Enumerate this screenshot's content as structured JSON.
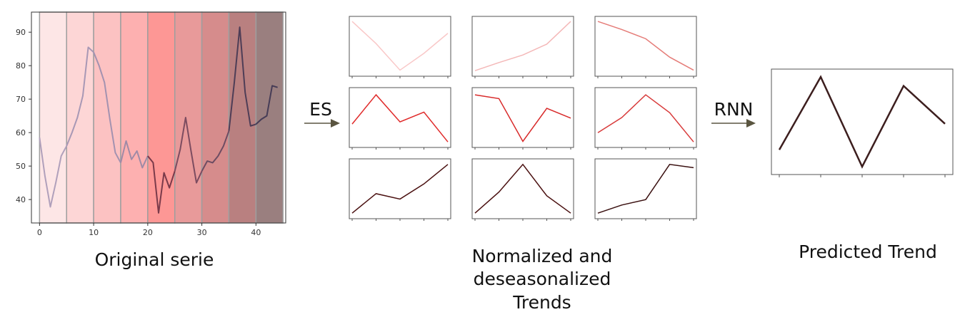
{
  "arrows": {
    "es_label": "ES",
    "rnn_label": "RNN"
  },
  "captions": {
    "original": "Original serie",
    "normalized_line1": "Normalized and",
    "normalized_line2": "deseasonalized",
    "normalized_line3": "Trends",
    "predicted": "Predicted Trend"
  },
  "colors": {
    "arrow": "#5a5540",
    "frame": "#555555",
    "segment_fills": [
      "#fde6e6",
      "#fdd6d6",
      "#fcc2c2",
      "#fdb0b0",
      "#fd9795",
      "#e89a9a",
      "#d68c8c",
      "#b98080",
      "#9a7f7f"
    ],
    "series_colors": [
      "#b0a0bb",
      "#a898b5",
      "#a392b0",
      "#9f8aa6",
      "#7a3a4a",
      "#7c4c60",
      "#6d4c62",
      "#4e3d56",
      "#463c56"
    ],
    "mini_row_colors": [
      "#f2b4b4",
      "#dd2b2b",
      "#3c0f10"
    ],
    "mini_cell_colors": [
      [
        "#f9c8c8",
        "#f4b8b8",
        "#e57c78"
      ],
      [
        "#e02a2a",
        "#d82a2a",
        "#d83a3a"
      ],
      [
        "#4a1010",
        "#4a1010",
        "#3a1010"
      ]
    ],
    "predicted": "#3c1e1e"
  },
  "chart_data": [
    {
      "type": "line",
      "title": "",
      "xlabel": "",
      "ylabel": "",
      "xlim": [
        -1.5,
        45.5
      ],
      "ylim": [
        33,
        96
      ],
      "x_ticks": [
        0,
        10,
        20,
        30,
        40
      ],
      "y_ticks": [
        40,
        50,
        60,
        70,
        80,
        90
      ],
      "segments": [
        0,
        5,
        10,
        15,
        20,
        25,
        30,
        35,
        40,
        45
      ],
      "x": [
        0,
        1,
        2,
        3,
        4,
        5,
        6,
        7,
        8,
        9,
        10,
        11,
        12,
        13,
        14,
        15,
        16,
        17,
        18,
        19,
        20,
        21,
        22,
        23,
        24,
        25,
        26,
        27,
        28,
        29,
        30,
        31,
        32,
        33,
        34,
        35,
        36,
        37,
        38,
        39,
        40,
        41,
        42,
        43,
        44
      ],
      "values": [
        58.5,
        47,
        37.8,
        45,
        53,
        56,
        60,
        64.5,
        71,
        85.5,
        84,
        80,
        75,
        64,
        54,
        51,
        57.5,
        52,
        54.5,
        49.5,
        53,
        51,
        36,
        48,
        43.5,
        48.5,
        55,
        64.5,
        54.5,
        45,
        48.5,
        51.5,
        51,
        53,
        56,
        60.5,
        75,
        91.5,
        72,
        62,
        62.5,
        64,
        65,
        74,
        73.5
      ]
    },
    {
      "type": "line",
      "title": "",
      "grid_rows": 3,
      "grid_cols": 3,
      "x": [
        0,
        1,
        2,
        3,
        4
      ],
      "ylim": [
        0,
        1
      ],
      "series": [
        {
          "values": [
            0.96,
            0.55,
            0.06,
            0.37,
            0.74
          ]
        },
        {
          "values": [
            0.05,
            0.2,
            0.34,
            0.54,
            0.96
          ]
        },
        {
          "values": [
            0.96,
            0.81,
            0.64,
            0.3,
            0.06
          ]
        },
        {
          "values": [
            0.38,
            0.92,
            0.42,
            0.6,
            0.05
          ]
        },
        {
          "values": [
            0.92,
            0.85,
            0.06,
            0.67,
            0.49
          ]
        },
        {
          "values": [
            0.22,
            0.5,
            0.92,
            0.59,
            0.05
          ]
        },
        {
          "values": [
            0.05,
            0.41,
            0.31,
            0.59,
            0.95
          ]
        },
        {
          "values": [
            0.05,
            0.44,
            0.95,
            0.37,
            0.05
          ]
        },
        {
          "values": [
            0.05,
            0.2,
            0.3,
            0.95,
            0.89
          ]
        }
      ]
    },
    {
      "type": "line",
      "title": "",
      "x": [
        0,
        1,
        2,
        3,
        4
      ],
      "ylim": [
        0,
        1
      ],
      "values": [
        0.22,
        0.95,
        0.05,
        0.86,
        0.48
      ]
    }
  ]
}
